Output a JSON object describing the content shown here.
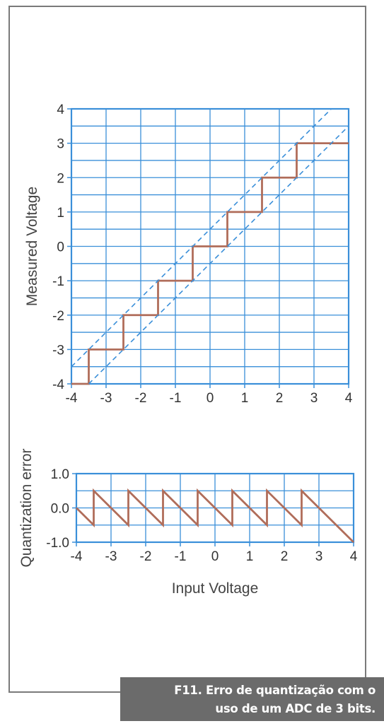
{
  "caption": {
    "line1": "F11. Erro de quantização com o",
    "line2": "uso de um ADC de 3 bits."
  },
  "colors": {
    "grid": "#3a8fd9",
    "signal": "#b06d5a",
    "dashed": "#3a8fd9",
    "caption_bg": "#6b6b6b"
  },
  "chart_data": [
    {
      "type": "line",
      "title": "",
      "xlabel": "",
      "ylabel": "Measured Voltage",
      "xlim": [
        -4,
        4
      ],
      "ylim": [
        -4,
        4
      ],
      "grid": true,
      "xticks": [
        "-4",
        "-3",
        "-2",
        "-1",
        "0",
        "1",
        "2",
        "3",
        "4"
      ],
      "yticks": [
        "4",
        "3",
        "2",
        "1",
        "0",
        "-1",
        "-2",
        "-3",
        "-4"
      ],
      "series": [
        {
          "style": "solid",
          "x": [
            -4,
            -3.5,
            -3.5,
            -2.5,
            -2.5,
            -1.5,
            -1.5,
            -0.5,
            -0.5,
            0.5,
            0.5,
            1.5,
            1.5,
            2.5,
            2.5,
            4
          ],
          "y": [
            -4,
            -4,
            -3,
            -3,
            -2,
            -2,
            -1,
            -1,
            0,
            0,
            1,
            1,
            2,
            2,
            3,
            3
          ]
        },
        {
          "style": "dashed",
          "x": [
            -4,
            3.5
          ],
          "y": [
            -3.5,
            4
          ]
        },
        {
          "style": "dashed",
          "x": [
            -3.5,
            4
          ],
          "y": [
            -4,
            3.5
          ]
        }
      ]
    },
    {
      "type": "line",
      "title": "",
      "xlabel": "Input Voltage",
      "ylabel": "Quantization error",
      "xlim": [
        -4,
        4
      ],
      "ylim": [
        -1,
        1
      ],
      "grid": true,
      "xticks": [
        "-4",
        "-3",
        "-2",
        "-1",
        "0",
        "1",
        "2",
        "3",
        "4"
      ],
      "yticks": [
        "1.0",
        "0.0",
        "-1.0"
      ],
      "series": [
        {
          "style": "solid",
          "x": [
            -4,
            -3.5,
            -3.5,
            -2.5,
            -2.5,
            -1.5,
            -1.5,
            -0.5,
            -0.5,
            0.5,
            0.5,
            1.5,
            1.5,
            2.5,
            2.5,
            4
          ],
          "y": [
            0,
            -0.5,
            0.5,
            -0.5,
            0.5,
            -0.5,
            0.5,
            -0.5,
            0.5,
            -0.5,
            0.5,
            -0.5,
            0.5,
            -0.5,
            0.5,
            -1
          ]
        }
      ]
    }
  ]
}
